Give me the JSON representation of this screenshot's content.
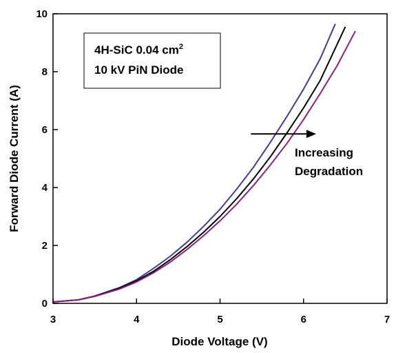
{
  "chart_data": {
    "type": "line",
    "xlabel": "Diode Voltage (V)",
    "ylabel": "Forward Diode Current (A)",
    "xlim": [
      3,
      7
    ],
    "ylim": [
      0,
      10
    ],
    "xticks": [
      "3",
      "4",
      "5",
      "6",
      "7"
    ],
    "yticks": [
      "0",
      "2",
      "4",
      "6",
      "8",
      "10"
    ],
    "grid": false,
    "legend": "none",
    "text_box": {
      "line1": "4H-SiC 0.04 cm",
      "line1_superscript": "2",
      "line2": "10 kV PiN Diode"
    },
    "annotation": {
      "line1": "Increasing",
      "line2": "Degradation",
      "arrow_from": [
        5.37,
        5.85
      ],
      "arrow_to": [
        6.15,
        5.85
      ]
    },
    "series": [
      {
        "color": "#3b3f9a",
        "x": [
          3.0,
          3.3,
          3.5,
          3.8,
          4.0,
          4.2,
          4.4,
          4.6,
          4.8,
          5.0,
          5.2,
          5.4,
          5.6,
          5.8,
          6.0,
          6.2,
          6.38
        ],
        "y": [
          0.05,
          0.12,
          0.25,
          0.55,
          0.82,
          1.2,
          1.62,
          2.1,
          2.65,
          3.25,
          3.95,
          4.7,
          5.55,
          6.45,
          7.4,
          8.45,
          9.65
        ]
      },
      {
        "color": "#000000",
        "x": [
          3.0,
          3.3,
          3.5,
          3.8,
          4.0,
          4.2,
          4.4,
          4.6,
          4.8,
          5.0,
          5.2,
          5.4,
          5.6,
          5.8,
          6.0,
          6.2,
          6.5
        ],
        "y": [
          0.05,
          0.12,
          0.25,
          0.53,
          0.78,
          1.1,
          1.5,
          1.95,
          2.45,
          3.0,
          3.62,
          4.3,
          5.05,
          5.88,
          6.75,
          7.7,
          9.55
        ]
      },
      {
        "color": "#8b1e7e",
        "x": [
          3.0,
          3.3,
          3.5,
          3.8,
          4.0,
          4.2,
          4.4,
          4.6,
          4.8,
          5.0,
          5.2,
          5.4,
          5.6,
          5.8,
          6.0,
          6.2,
          6.4,
          6.62
        ],
        "y": [
          0.05,
          0.12,
          0.24,
          0.5,
          0.74,
          1.05,
          1.42,
          1.85,
          2.33,
          2.85,
          3.43,
          4.07,
          4.77,
          5.52,
          6.35,
          7.25,
          8.2,
          9.4
        ]
      }
    ]
  }
}
